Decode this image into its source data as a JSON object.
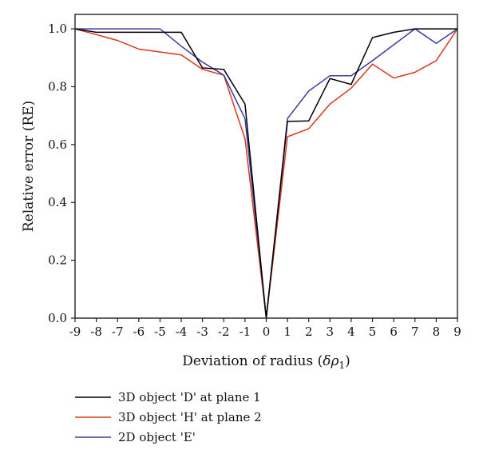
{
  "chart_data": {
    "type": "line",
    "title": "",
    "xlabel": "Deviation of radius (",
    "xlabel_symbol": "δρ",
    "xlabel_sub": "1",
    "xlabel_close": ")",
    "ylabel": "Relative error (RE)",
    "xlim": [
      -9,
      9
    ],
    "ylim": [
      0,
      1.05
    ],
    "x_ticks": [
      -9,
      -8,
      -7,
      -6,
      -5,
      -4,
      -3,
      -2,
      -1,
      0,
      1,
      2,
      3,
      4,
      5,
      6,
      7,
      8,
      9
    ],
    "x_tick_labels": [
      "-9",
      "-8",
      "-7",
      "-6",
      "-5",
      "-4",
      "-3",
      "-2",
      "-1",
      "0",
      "1",
      "2",
      "3",
      "4",
      "5",
      "6",
      "7",
      "8",
      "9"
    ],
    "y_ticks": [
      0.0,
      0.2,
      0.4,
      0.6,
      0.8,
      1.0
    ],
    "y_tick_labels": [
      "0.0",
      "0.2",
      "0.4",
      "0.6",
      "0.8",
      "1.0"
    ],
    "grid": false,
    "legend_position": "bottom-left",
    "x": [
      -9,
      -8,
      -7,
      -6,
      -5,
      -4,
      -3,
      -2,
      -1,
      0,
      1,
      2,
      3,
      4,
      5,
      6,
      7,
      8,
      9
    ],
    "series": [
      {
        "name": "3D object 'D' at plane 1",
        "color": "#000000",
        "values": [
          1.0,
          0.988,
          0.988,
          0.988,
          0.988,
          0.988,
          0.865,
          0.86,
          0.74,
          0.0,
          0.68,
          0.682,
          0.828,
          0.808,
          0.97,
          0.988,
          1.0,
          1.0,
          1.0
        ]
      },
      {
        "name": "3D object 'H' at plane 2",
        "color": "#d93a1f",
        "values": [
          1.0,
          0.98,
          0.96,
          0.93,
          0.92,
          0.91,
          0.86,
          0.84,
          0.62,
          0.0,
          0.627,
          0.655,
          0.74,
          0.795,
          0.878,
          0.83,
          0.85,
          0.89,
          1.0
        ]
      },
      {
        "name": "2D object 'E'",
        "color": "#3d3a9e",
        "values": [
          1.0,
          1.0,
          1.0,
          1.0,
          1.0,
          0.94,
          0.885,
          0.84,
          0.69,
          0.0,
          0.69,
          0.785,
          0.838,
          0.838,
          0.89,
          0.945,
          1.0,
          0.95,
          1.0
        ]
      }
    ]
  }
}
